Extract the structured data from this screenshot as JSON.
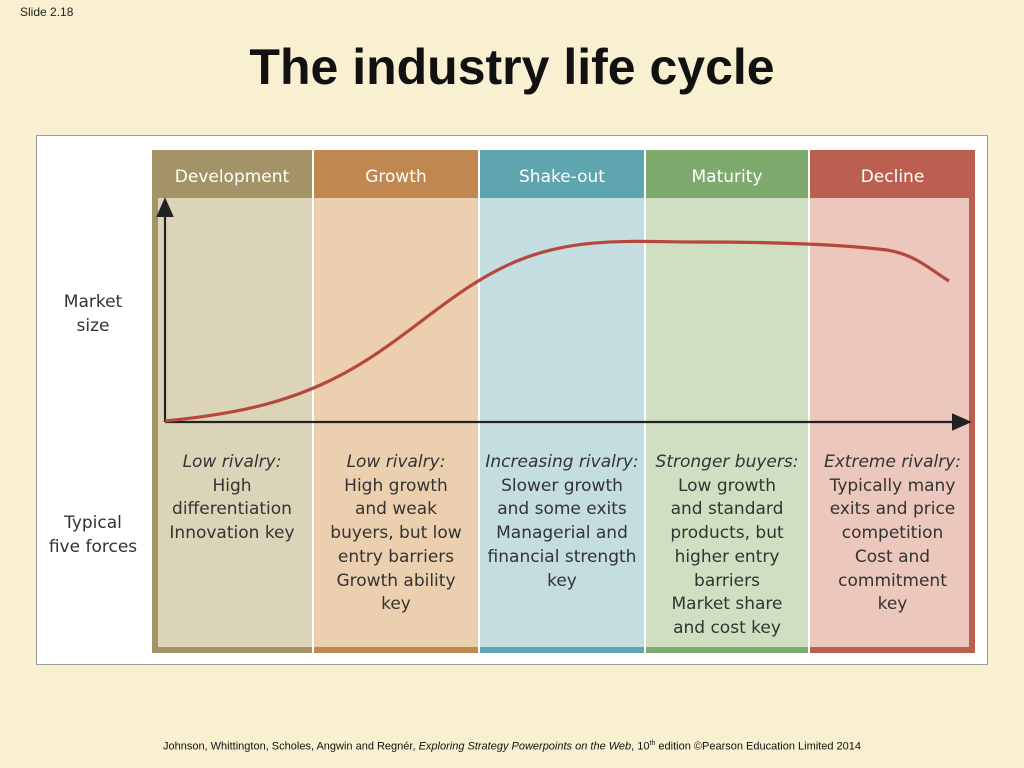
{
  "slide_number": "Slide 2.18",
  "title": "The industry life cycle",
  "y_axis_label_lines": [
    "Market",
    "size"
  ],
  "five_forces_label_lines": [
    "Typical",
    "five forces"
  ],
  "stages": [
    {
      "name": "Development",
      "header_color": "#a39366",
      "body_color": "#dcd4b8",
      "border_color": "#a39366",
      "lead": "Low rivalry:",
      "lines": [
        "High",
        "differentiation",
        "Innovation key"
      ]
    },
    {
      "name": "Growth",
      "header_color": "#c08850",
      "body_color": "#eccfae",
      "border_color": "#c08850",
      "lead": "Low rivalry:",
      "lines": [
        "High growth",
        "and weak",
        "buyers, but low",
        "entry barriers",
        "Growth ability",
        "key"
      ]
    },
    {
      "name": "Shake-out",
      "header_color": "#5fa5b0",
      "body_color": "#c4dde0",
      "border_color": "#5fa5b0",
      "lead": "Increasing rivalry:",
      "lines": [
        "Slower growth",
        "and some exits",
        "Managerial and",
        "financial strength",
        "key"
      ]
    },
    {
      "name": "Maturity",
      "header_color": "#7faa6e",
      "body_color": "#cfe0c2",
      "border_color": "#7faa6e",
      "lead": "Stronger buyers:",
      "lines": [
        "Low growth",
        "and standard",
        "products, but",
        "higher entry",
        "barriers",
        "Market share",
        "and cost key"
      ]
    },
    {
      "name": "Decline",
      "header_color": "#bb5f50",
      "body_color": "#ecc7bc",
      "border_color": "#bb5f50",
      "lead": "Extreme rivalry:",
      "lines": [
        "Typically many",
        "exits and price",
        "competition",
        "Cost and",
        "commitment",
        "key"
      ]
    }
  ],
  "curve_color": "#b5473d",
  "axis_color": "#222222",
  "footer": {
    "authors": "Johnson, Whittington, Scholes, Angwin and Regnér, ",
    "book": "Exploring Strategy Powerpoints on the Web",
    "edition_pre": ", 10",
    "edition_sup": "th",
    "edition_post": " edition ©Pearson Education Limited 2014"
  }
}
